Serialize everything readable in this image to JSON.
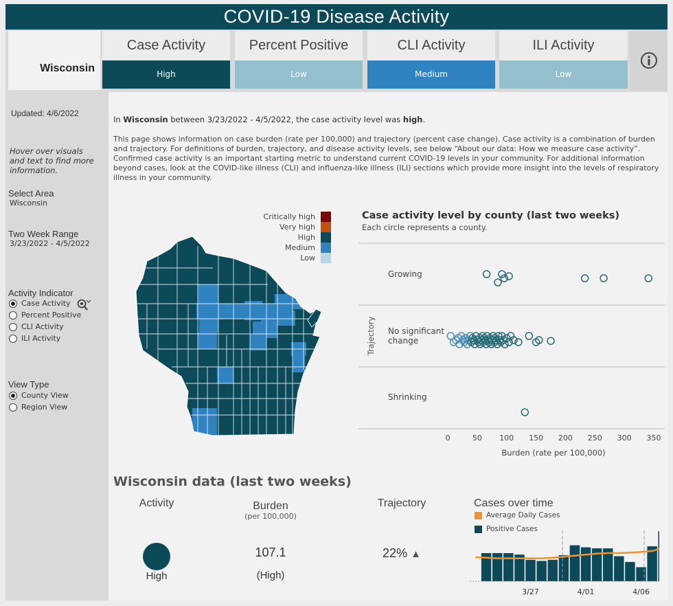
{
  "header": {
    "title": "COVID-19 Disease Activity",
    "area": "Wisconsin",
    "metrics": [
      {
        "label": "Case Activity",
        "value": "High",
        "color": "#0c4a5a"
      },
      {
        "label": "Percent Positive",
        "value": "Low",
        "color": "#93c0cc"
      },
      {
        "label": "CLI Activity",
        "value": "Medium",
        "color": "#2e83c0"
      },
      {
        "label": "ILI Activity",
        "value": "Low",
        "color": "#93c0cc"
      }
    ],
    "info_icon": "info-circle-icon"
  },
  "sidebar": {
    "updated": "Updated: 4/6/2022",
    "hover_note": "Hover over visuals and text to find more information.",
    "select_area_label": "Select Area",
    "select_area_value": "Wisconsin",
    "range_label": "Two Week Range",
    "range_value": "3/23/2022 - 4/5/2022",
    "indicator_label": "Activity Indicator",
    "indicator_options": [
      "Case Activity",
      "Percent Positive",
      "CLI Activity",
      "ILI Activity"
    ],
    "indicator_selected": "Case Activity",
    "view_label": "View Type",
    "view_options": [
      "County View",
      "Region View"
    ],
    "view_selected": "County View",
    "zoom_icon": "zoom-select-icon"
  },
  "summary": {
    "prefix": "In ",
    "state": "Wisconsin",
    "middle": " between 3/23/2022 - 4/5/2022, the case activity level was ",
    "level": "high",
    "suffix": ".",
    "description": "This page shows information on case burden (rate per 100,000) and trajectory (percent case change). Case activity is a combination of burden and trajectory. For definitions of burden, trajectory, and disease activity levels, see below “About our data: How we measure case activity”. Confirmed case activity is an important starting metric to understand current COVID-19 levels in your community. For additional information beyond cases, look at the COVID-like illness (CLI) and influenza-like illness (ILI) sections which provide more insight into the levels of respiratory illness in your community."
  },
  "legend": [
    {
      "label": "Critically high",
      "color": "#7a0a0a"
    },
    {
      "label": "Very high",
      "color": "#c0510f"
    },
    {
      "label": "High",
      "color": "#0c4a5a"
    },
    {
      "label": "Medium",
      "color": "#2e83c0"
    },
    {
      "label": "Low",
      "color": "#b8d7e2"
    }
  ],
  "dot_chart": {
    "title": "Case activity level by county (last two weeks)",
    "subtitle": "Each circle represents a county.",
    "ylabel": "Trajectory",
    "xlabel": "Burden (rate per 100,000)",
    "rows": [
      "Growing",
      "No significant change",
      "Shrinking"
    ],
    "xticks": [
      "0",
      "50",
      "100",
      "150",
      "200",
      "250",
      "300",
      "350"
    ]
  },
  "chart_data": [
    {
      "type": "scatter",
      "title": "Case activity level by county (last two weeks)",
      "xlabel": "Burden (rate per 100,000)",
      "ylabel": "Trajectory",
      "xlim": [
        0,
        350
      ],
      "categories": [
        "Growing",
        "No significant change",
        "Shrinking"
      ],
      "series": [
        {
          "category": "Growing",
          "x": [
            66,
            85,
            92,
            96,
            104,
            233,
            265,
            341
          ],
          "offset": [
            -1,
            1,
            -1,
            0,
            -0.5,
            0,
            0,
            0
          ]
        },
        {
          "category": "No significant change",
          "x": [
            5,
            10,
            14,
            18,
            20,
            23,
            26,
            28,
            30,
            33,
            35,
            38,
            40,
            42,
            44,
            46,
            48,
            50,
            52,
            54,
            55,
            57,
            59,
            60,
            62,
            64,
            65,
            67,
            68,
            70,
            72,
            74,
            75,
            77,
            79,
            80,
            82,
            84,
            86,
            88,
            90,
            92,
            95,
            97,
            100,
            104,
            107,
            112,
            120,
            138,
            150,
            155,
            175
          ],
          "offset": [
            -1,
            0.5,
            0,
            -0.5,
            1,
            -1,
            0,
            0.5,
            -0.5,
            1,
            0,
            -1,
            0.5,
            -0.5,
            0,
            1,
            -1,
            0,
            0.5,
            -0.5,
            1,
            0,
            -1,
            0.5,
            -0.5,
            0,
            1,
            -1,
            0,
            0.5,
            -0.5,
            1,
            0,
            -1,
            0.5,
            -0.5,
            0,
            1,
            -1,
            0,
            0.5,
            -1,
            0,
            1,
            -0.5,
            0.5,
            -1,
            0,
            0.5,
            -1,
            0.5,
            0,
            0.2
          ]
        },
        {
          "category": "Shrinking",
          "x": [
            131
          ],
          "offset": [
            0
          ]
        }
      ]
    },
    {
      "type": "bar",
      "title": "Cases over time",
      "legend": [
        "Average Daily Cases",
        "Positive Cases"
      ],
      "xticks": [
        "3/27",
        "4/01",
        "4/06"
      ],
      "bar_values": [
        0,
        54,
        54,
        54,
        51,
        41,
        39,
        41,
        50,
        69,
        65,
        63,
        63,
        48,
        37,
        27,
        67,
        96
      ],
      "line_values": [
        46,
        45,
        44,
        44,
        44,
        44,
        44,
        45,
        47,
        49,
        51,
        53,
        54,
        54,
        55,
        56,
        58,
        64
      ],
      "ymax": 100
    }
  ],
  "wi_data": {
    "title": "Wisconsin data (last two weeks)",
    "activity_label": "Activity",
    "activity_value": "High",
    "burden_label": "Burden",
    "burden_sub": "(per 100,000)",
    "burden_value": "107.1",
    "burden_level": "(High)",
    "trajectory_label": "Trajectory",
    "trajectory_value": "22%",
    "trajectory_arrow": "▲",
    "cases_title": "Cases over time",
    "legend_avg": "Average Daily Cases",
    "legend_pos": "Positive Cases",
    "avg_color": "#f0922f",
    "pos_color": "#0c4a5a"
  }
}
